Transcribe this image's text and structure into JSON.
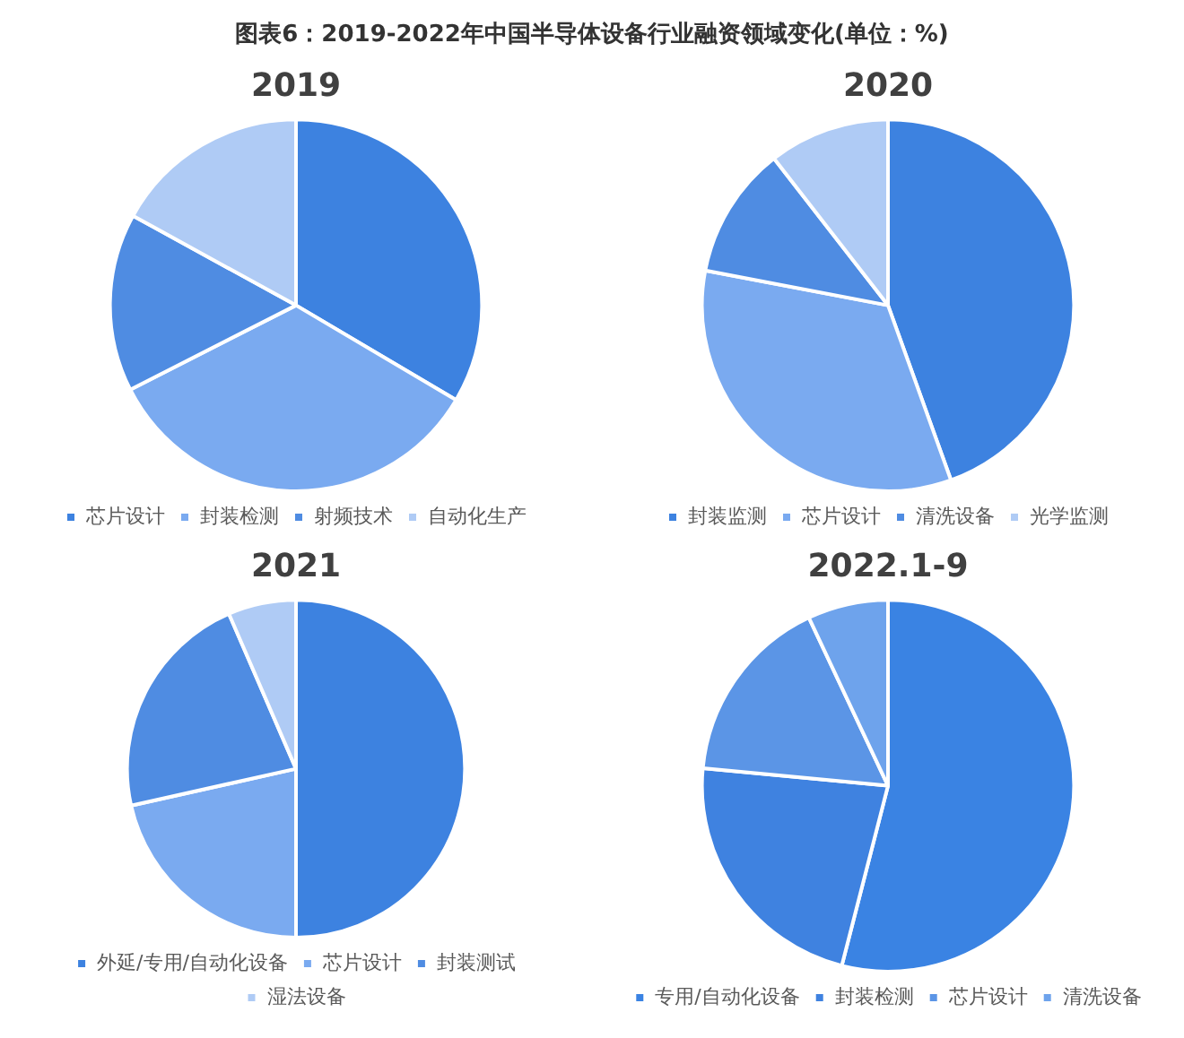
{
  "chart_data": [
    {
      "type": "other",
      "title": "图表6：2019-2022年中国半导体设备行业融资领域变化(单位：%)"
    },
    {
      "type": "pie",
      "title": "2019",
      "categories": [
        "芯片设计",
        "封装检测",
        "射频技术",
        "自动化生产"
      ],
      "values": [
        33.5,
        34,
        15.5,
        17
      ],
      "colors": [
        "#3d82e0",
        "#7aaaf0",
        "#4f8ce2",
        "#afcbf5"
      ],
      "legend": "bottom"
    },
    {
      "type": "pie",
      "title": "2020",
      "categories": [
        "封装监测",
        "芯片设计",
        "清洗设备",
        "光学监测"
      ],
      "values": [
        44.5,
        33.5,
        11.5,
        10.5
      ],
      "colors": [
        "#3d82e0",
        "#7aaaf0",
        "#4f8ce2",
        "#afcbf5"
      ],
      "legend": "bottom"
    },
    {
      "type": "pie",
      "title": "2021",
      "categories": [
        "外延/专用/自动化设备",
        "芯片设计",
        "封装测试",
        "湿法设备"
      ],
      "values": [
        50,
        21.5,
        22,
        6.5
      ],
      "colors": [
        "#3d82e0",
        "#7aaaf0",
        "#4f8ce2",
        "#afcbf5"
      ],
      "legend": "bottom"
    },
    {
      "type": "pie",
      "title": "2022.1-9",
      "categories": [
        "专用/自动化设备",
        "封装检测",
        "芯片设计",
        "清洗设备"
      ],
      "values": [
        54,
        22.5,
        16.5,
        7
      ],
      "colors": [
        "#3a83e3",
        "#3f82e0",
        "#5b95e6",
        "#6ea3ec"
      ],
      "legend": "bottom"
    }
  ]
}
